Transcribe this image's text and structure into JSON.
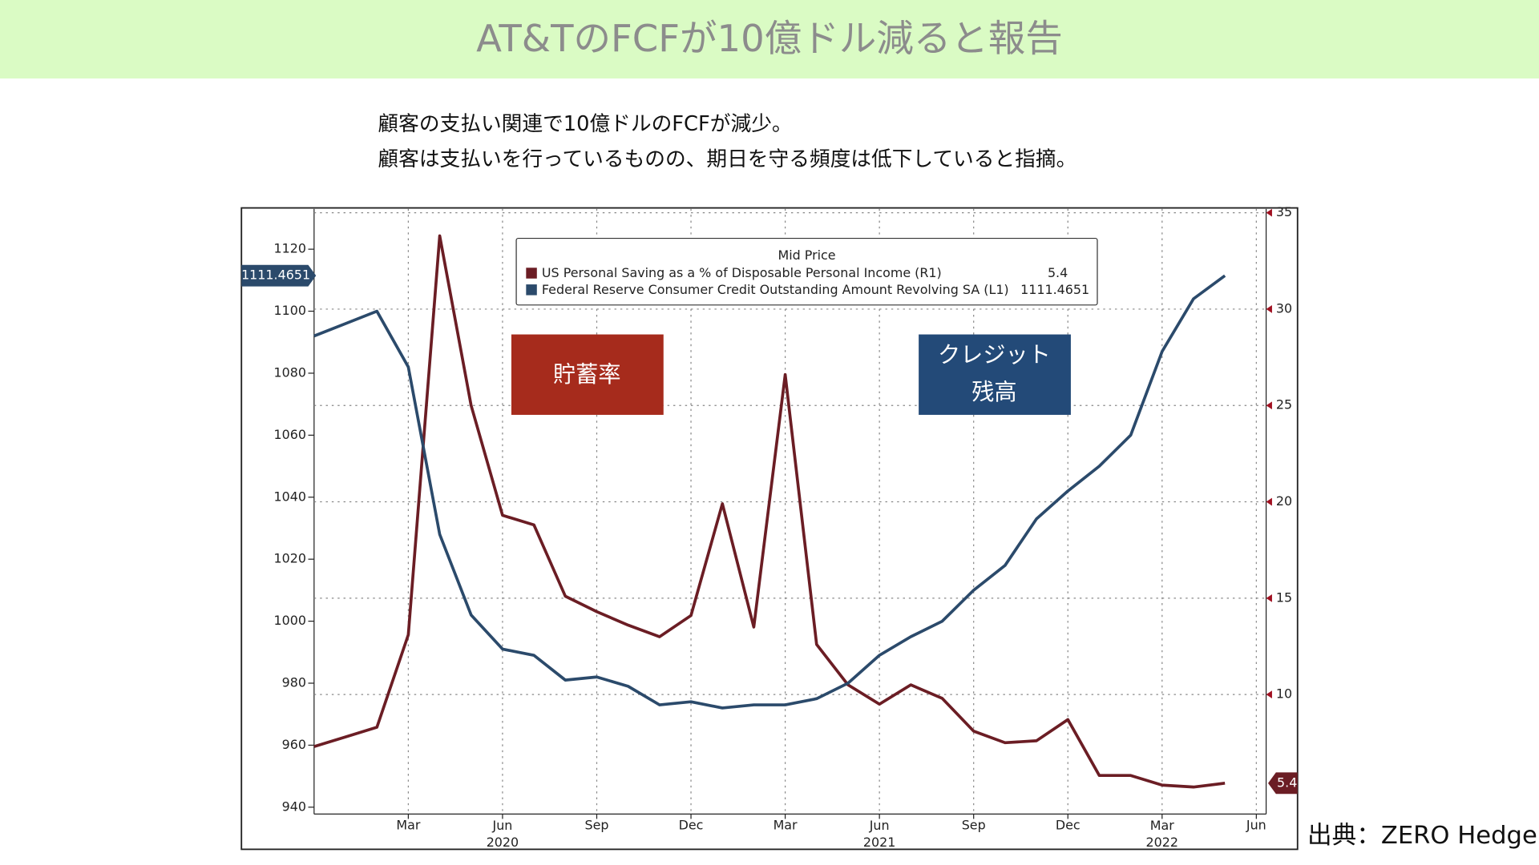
{
  "header": {
    "title": "AT&TのFCFが10億ドル減ると報告"
  },
  "subtitle": [
    "顧客の支払い関連で10億ドルのFCFが減少。",
    "顧客は支払いを行っているものの、期日を守る頻度は低下していると指摘。"
  ],
  "source": "出典：ZERO Hedge",
  "chart_data": {
    "type": "line",
    "legend_title": "Mid Price",
    "categories": [
      null,
      null,
      null,
      "Mar",
      null,
      null,
      "Jun 2020",
      null,
      null,
      "Sep",
      null,
      null,
      "Dec",
      null,
      null,
      "Mar",
      null,
      null,
      "Jun 2021",
      null,
      null,
      "Sep",
      null,
      null,
      "Dec",
      null,
      null,
      "Mar 2022",
      null,
      null,
      "Jun"
    ],
    "series": [
      {
        "name": "US Personal Saving as a % of Disposable Personal Income  (R1)",
        "color": "#6b1d24",
        "axis": "y2",
        "values": [
          7.3,
          7.8,
          8.3,
          13.1,
          33.8,
          25.0,
          19.3,
          18.8,
          15.1,
          14.3,
          13.6,
          13.0,
          14.1,
          19.9,
          13.5,
          26.6,
          12.6,
          10.5,
          9.5,
          10.5,
          9.8,
          8.1,
          7.5,
          7.6,
          8.7,
          5.8,
          5.8,
          5.3,
          5.2,
          5.4,
          null
        ]
      },
      {
        "name": "Federal Reserve Consumer Credit Outstanding Amount Revolving SA  (L1)",
        "color": "#2b4a6b",
        "values": [
          1092,
          1096,
          1100,
          1082,
          1028,
          1002,
          991,
          989,
          981,
          982,
          979,
          973,
          974,
          972,
          973,
          973,
          975,
          980,
          989,
          995,
          1000,
          1010,
          1018,
          1033,
          1042,
          1050,
          1060,
          1087,
          1104,
          1111.4651,
          null
        ]
      }
    ],
    "ylim": [
      937.8,
      1133
    ],
    "yticks": [
      940,
      960,
      980,
      1000,
      1020,
      1040,
      1060,
      1080,
      1100,
      1120
    ],
    "y2lim": [
      3.8,
      35.2
    ],
    "y2ticks": [
      10,
      15,
      20,
      25,
      30,
      35
    ],
    "grid": true,
    "annotations": [
      {
        "text": "貯蓄率",
        "color": "#a62b1c"
      },
      {
        "text": "クレジット 残高",
        "color": "#234a78"
      }
    ]
  }
}
